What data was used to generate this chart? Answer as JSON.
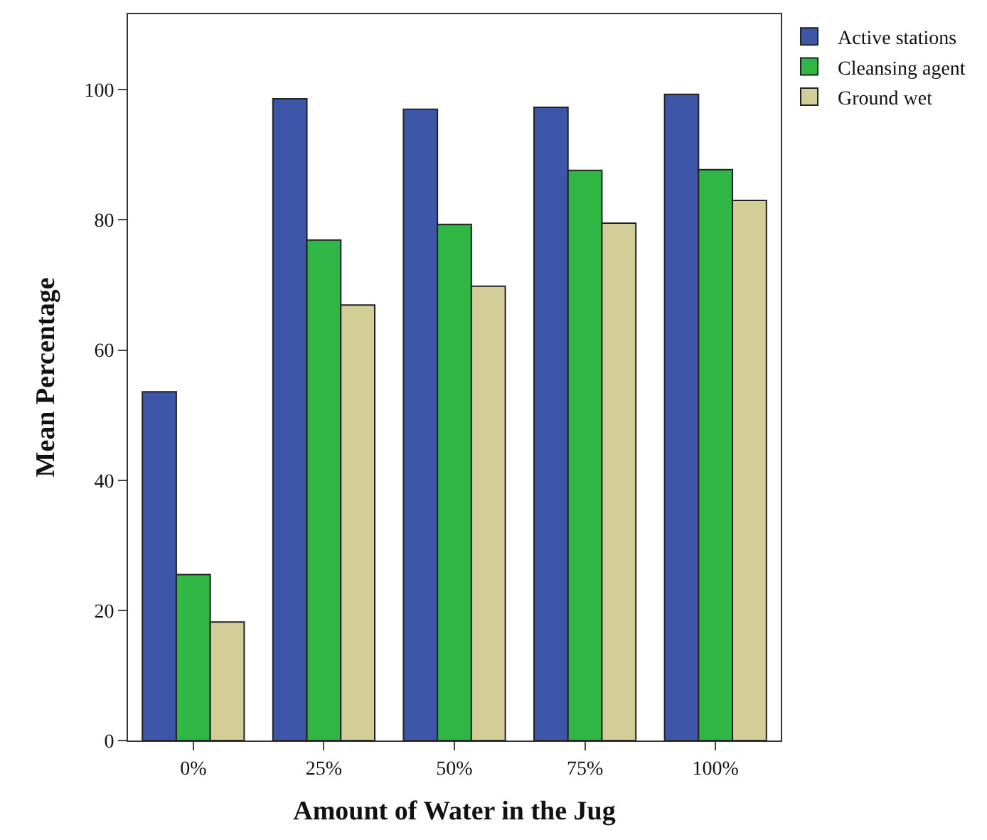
{
  "chart_data": {
    "type": "bar",
    "xlabel": "Amount of Water in the Jug",
    "ylabel": "Mean Percentage",
    "categories": [
      "0%",
      "25%",
      "50%",
      "75%",
      "100%"
    ],
    "series": [
      {
        "name": "Active stations",
        "color": "#3d56a8",
        "values": [
          53.6,
          98.6,
          97.0,
          97.3,
          99.3
        ]
      },
      {
        "name": "Cleansing agent",
        "color": "#2fb645",
        "values": [
          25.5,
          76.9,
          79.3,
          87.6,
          87.7
        ]
      },
      {
        "name": "Ground wet",
        "color": "#d3cd97",
        "values": [
          18.2,
          66.9,
          69.8,
          79.5,
          83.0
        ]
      }
    ],
    "ylim": [
      0,
      111.6
    ],
    "yticks": [
      0,
      20,
      40,
      60,
      80,
      100
    ],
    "grid": false,
    "legend": "top right"
  }
}
